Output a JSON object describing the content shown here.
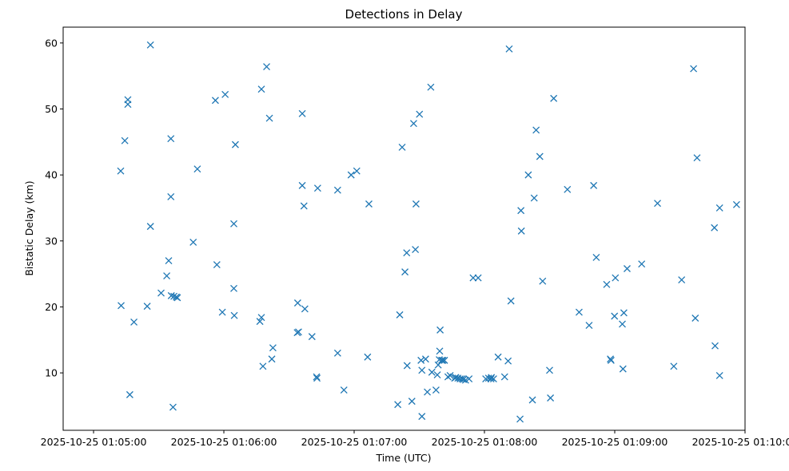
{
  "chart_data": {
    "type": "scatter",
    "title": "Detections in Delay",
    "xlabel": "Time (UTC)",
    "ylabel": "Bistatic Delay (km)",
    "marker": "x",
    "color": "#1f77b4",
    "xlim_seconds": [
      -14,
      300
    ],
    "ylim": [
      1.3,
      62.4
    ],
    "x_origin": "2025-10-25 01:05:00",
    "x_ticks": [
      {
        "value": 0,
        "label": "2025-10-25 01:05:00"
      },
      {
        "value": 60,
        "label": "2025-10-25 01:06:00"
      },
      {
        "value": 120,
        "label": "2025-10-25 01:07:00"
      },
      {
        "value": 180,
        "label": "2025-10-25 01:08:00"
      },
      {
        "value": 240,
        "label": "2025-10-25 01:09:00"
      },
      {
        "value": 300,
        "label": "2025-10-25 01:10:00"
      }
    ],
    "y_ticks": [
      {
        "value": 10,
        "label": "10"
      },
      {
        "value": 20,
        "label": "20"
      },
      {
        "value": 30,
        "label": "30"
      },
      {
        "value": 40,
        "label": "40"
      },
      {
        "value": 50,
        "label": "50"
      },
      {
        "value": 60,
        "label": "60"
      }
    ],
    "points": [
      [
        12.5,
        40.6
      ],
      [
        12.7,
        20.2
      ],
      [
        14.4,
        45.2
      ],
      [
        15.8,
        51.4
      ],
      [
        15.8,
        50.7
      ],
      [
        16.7,
        6.7
      ],
      [
        18.6,
        17.7
      ],
      [
        24.7,
        20.1
      ],
      [
        26.2,
        59.7
      ],
      [
        26.2,
        32.2
      ],
      [
        31.1,
        22.1
      ],
      [
        33.7,
        24.7
      ],
      [
        34.6,
        27.0
      ],
      [
        35.6,
        45.5
      ],
      [
        35.6,
        36.7
      ],
      [
        35.8,
        21.7
      ],
      [
        36.6,
        4.8
      ],
      [
        37.0,
        21.6
      ],
      [
        38.1,
        21.5
      ],
      [
        38.6,
        21.4
      ],
      [
        45.9,
        29.8
      ],
      [
        47.8,
        40.9
      ],
      [
        56.1,
        51.3
      ],
      [
        56.8,
        26.4
      ],
      [
        59.3,
        19.2
      ],
      [
        60.6,
        52.2
      ],
      [
        64.6,
        32.6
      ],
      [
        64.6,
        22.8
      ],
      [
        64.8,
        18.7
      ],
      [
        65.3,
        44.6
      ],
      [
        76.6,
        17.8
      ],
      [
        77.3,
        18.4
      ],
      [
        77.3,
        53.0
      ],
      [
        78.0,
        11.0
      ],
      [
        79.7,
        56.4
      ],
      [
        81.0,
        48.6
      ],
      [
        82.1,
        12.1
      ],
      [
        82.6,
        13.8
      ],
      [
        93.8,
        16.1
      ],
      [
        94.0,
        20.6
      ],
      [
        94.4,
        16.2
      ],
      [
        96.1,
        49.3
      ],
      [
        96.1,
        38.4
      ],
      [
        96.9,
        35.3
      ],
      [
        97.3,
        19.7
      ],
      [
        100.6,
        15.5
      ],
      [
        102.7,
        9.4
      ],
      [
        102.9,
        9.2
      ],
      [
        103.2,
        38.0
      ],
      [
        112.4,
        37.7
      ],
      [
        112.4,
        13.0
      ],
      [
        115.3,
        7.4
      ],
      [
        118.6,
        40.0
      ],
      [
        121.2,
        40.6
      ],
      [
        126.2,
        12.4
      ],
      [
        126.8,
        35.6
      ],
      [
        140.1,
        5.2
      ],
      [
        141.0,
        18.8
      ],
      [
        142.1,
        44.2
      ],
      [
        143.4,
        25.3
      ],
      [
        144.2,
        28.2
      ],
      [
        144.4,
        11.1
      ],
      [
        146.6,
        5.7
      ],
      [
        147.4,
        47.8
      ],
      [
        148.2,
        28.7
      ],
      [
        148.5,
        35.6
      ],
      [
        150.1,
        49.2
      ],
      [
        150.8,
        11.9
      ],
      [
        151.2,
        10.4
      ],
      [
        151.2,
        3.4
      ],
      [
        152.9,
        12.1
      ],
      [
        153.7,
        7.1
      ],
      [
        155.3,
        53.3
      ],
      [
        155.8,
        10.1
      ],
      [
        157.7,
        7.4
      ],
      [
        158.3,
        9.7
      ],
      [
        158.7,
        11.2
      ],
      [
        159.2,
        12.0
      ],
      [
        159.4,
        13.3
      ],
      [
        159.6,
        16.5
      ],
      [
        160.3,
        11.9
      ],
      [
        160.8,
        11.9
      ],
      [
        161.6,
        11.9
      ],
      [
        163.2,
        9.4
      ],
      [
        164.2,
        9.6
      ],
      [
        166.3,
        9.2
      ],
      [
        166.8,
        9.3
      ],
      [
        167.8,
        9.2
      ],
      [
        168.8,
        9.1
      ],
      [
        169.7,
        9.1
      ],
      [
        170.3,
        9.0
      ],
      [
        171.3,
        8.9
      ],
      [
        172.9,
        9.1
      ],
      [
        174.8,
        24.4
      ],
      [
        177.1,
        24.4
      ],
      [
        180.6,
        9.1
      ],
      [
        181.9,
        9.2
      ],
      [
        183.0,
        9.1
      ],
      [
        183.2,
        9.3
      ],
      [
        184.2,
        9.1
      ],
      [
        186.3,
        12.4
      ],
      [
        189.3,
        9.4
      ],
      [
        190.9,
        11.8
      ],
      [
        191.4,
        59.1
      ],
      [
        192.2,
        20.9
      ],
      [
        196.4,
        3.0
      ],
      [
        196.8,
        34.6
      ],
      [
        197.0,
        31.5
      ],
      [
        200.2,
        40.0
      ],
      [
        202.1,
        5.9
      ],
      [
        202.9,
        36.5
      ],
      [
        203.8,
        46.8
      ],
      [
        205.5,
        42.8
      ],
      [
        206.8,
        23.9
      ],
      [
        210.0,
        10.4
      ],
      [
        210.4,
        6.2
      ],
      [
        211.9,
        51.6
      ],
      [
        218.2,
        37.8
      ],
      [
        223.6,
        19.2
      ],
      [
        228.2,
        17.2
      ],
      [
        230.3,
        38.4
      ],
      [
        231.5,
        27.5
      ],
      [
        236.3,
        23.4
      ],
      [
        238.0,
        12.1
      ],
      [
        238.3,
        11.9
      ],
      [
        239.9,
        18.6
      ],
      [
        240.3,
        24.4
      ],
      [
        243.5,
        17.4
      ],
      [
        243.8,
        10.6
      ],
      [
        244.2,
        19.1
      ],
      [
        245.7,
        25.8
      ],
      [
        252.4,
        26.5
      ],
      [
        259.7,
        35.7
      ],
      [
        267.2,
        11.0
      ],
      [
        270.8,
        24.1
      ],
      [
        276.3,
        56.1
      ],
      [
        277.1,
        18.3
      ],
      [
        277.9,
        42.6
      ],
      [
        285.9,
        32.0
      ],
      [
        286.2,
        14.1
      ],
      [
        288.3,
        9.6
      ],
      [
        288.3,
        35.0
      ],
      [
        296.1,
        35.5
      ]
    ]
  }
}
